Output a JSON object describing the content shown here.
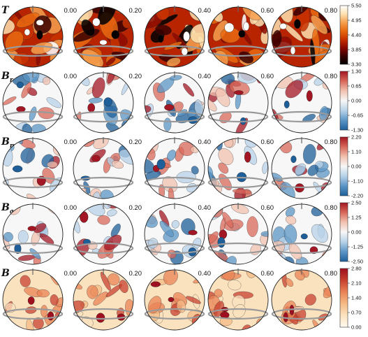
{
  "times": [
    "0.00",
    "0.20",
    "0.40",
    "0.60",
    "0.80"
  ],
  "rows": [
    {
      "symbol": "T",
      "subscript": "",
      "colormap": "hot",
      "colorbar_ticks": [
        "5.50",
        "4.95",
        "4.40",
        "3.85",
        "3.30"
      ],
      "range": [
        3.3,
        5.5
      ]
    },
    {
      "symbol": "B",
      "subscript": "r",
      "colormap": "diverging",
      "colorbar_ticks": [
        "1.30",
        "0.65",
        "0.00",
        "-0.65",
        "-1.30"
      ],
      "range": [
        -1.3,
        1.3
      ]
    },
    {
      "symbol": "B",
      "subscript": "m",
      "colormap": "diverging",
      "colorbar_ticks": [
        "2.20",
        "1.10",
        "0.00",
        "-1.10",
        "-2.20"
      ],
      "range": [
        -2.2,
        2.2
      ]
    },
    {
      "symbol": "B",
      "subscript": "a",
      "colormap": "diverging",
      "colorbar_ticks": [
        "2.50",
        "1.25",
        "0.00",
        "-1.25",
        "-2.50"
      ],
      "range": [
        -2.5,
        2.5
      ]
    },
    {
      "symbol": "B",
      "subscript": "",
      "colormap": "sequential-orange-red",
      "colorbar_ticks": [
        "2.80",
        "2.10",
        "1.40",
        "0.70",
        "0.00"
      ],
      "range": [
        0.0,
        2.8
      ]
    }
  ],
  "colors": {
    "hot": [
      "#000000",
      "#3a0000",
      "#8b0a00",
      "#c83200",
      "#e86a10",
      "#f5a050",
      "#fde2b0",
      "#ffffff"
    ],
    "diverging": [
      "#1e5f9a",
      "#5b95c6",
      "#b7d2e8",
      "#f7f7f7",
      "#f2c2b0",
      "#d8685a",
      "#a31623"
    ],
    "sequential-orange-red": [
      "#fffaf0",
      "#fbe2bf",
      "#f5bb86",
      "#e98356",
      "#c8402f",
      "#9e1020"
    ],
    "sphere_outline": "#222222",
    "equator": "#9a9a9a"
  }
}
